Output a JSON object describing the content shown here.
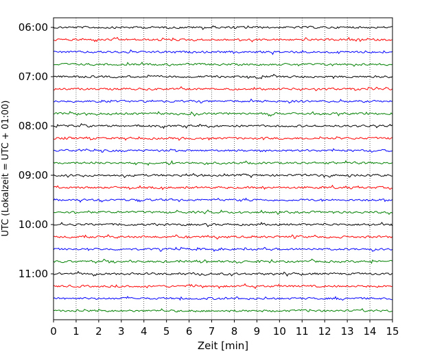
{
  "chart_data": {
    "type": "line",
    "title": "",
    "xlabel": "Zeit  [min]",
    "ylabel": "UTC (Lokalzeit = UTC + 01:00)",
    "xlim": [
      0,
      15
    ],
    "x_ticks": [
      0,
      1,
      2,
      3,
      4,
      5,
      6,
      7,
      8,
      9,
      10,
      11,
      12,
      13,
      14,
      15
    ],
    "x_grid": true,
    "y_grid": false,
    "y_tick_labels": [
      "06:00",
      "07:00",
      "08:00",
      "09:00",
      "10:00",
      "11:00"
    ],
    "row_interval_minutes": 15,
    "first_row_time": "06:00",
    "last_row_time": "11:45",
    "row_colors": [
      "#000000",
      "#ff0000",
      "#0000ff",
      "#008000"
    ],
    "row_times": [
      "06:00",
      "06:15",
      "06:30",
      "06:45",
      "07:00",
      "07:15",
      "07:30",
      "07:45",
      "08:00",
      "08:15",
      "08:30",
      "08:45",
      "09:00",
      "09:15",
      "09:30",
      "09:45",
      "10:00",
      "10:15",
      "10:30",
      "10:45",
      "11:00",
      "11:15",
      "11:30",
      "11:45"
    ]
  }
}
